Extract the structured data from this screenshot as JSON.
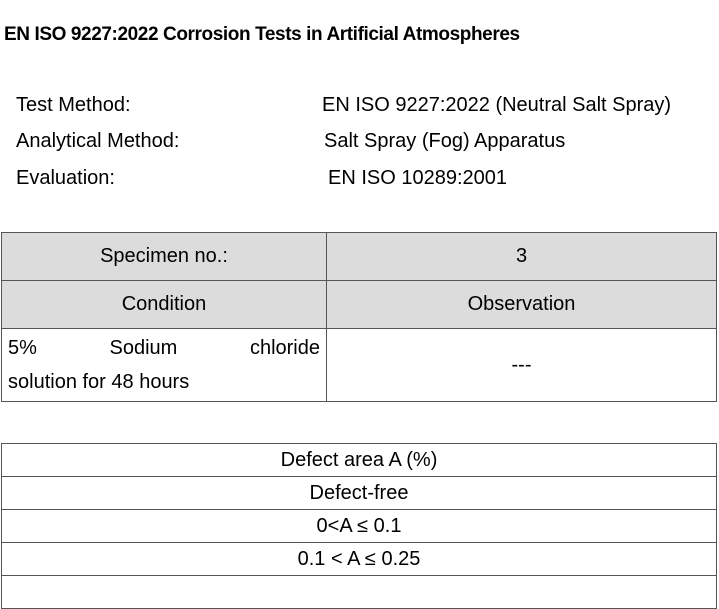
{
  "title": "EN ISO 9227:2022 Corrosion Tests in Artificial Atmospheres",
  "info": [
    {
      "label": "Test Method:",
      "value": "EN ISO 9227:2022 (Neutral Salt Spray)"
    },
    {
      "label": "Analytical Method:",
      "value": "Salt Spray (Fog) Apparatus"
    },
    {
      "label": "Evaluation:",
      "value": "EN ISO 10289:2001"
    }
  ],
  "specimen_table": {
    "specimen_label": "Specimen no.:",
    "specimen_value": "3",
    "condition_header": "Condition",
    "observation_header": "Observation",
    "condition_line1": "5% Sodium chloride",
    "condition_line2": "solution for 48 hours",
    "observation_value": "---"
  },
  "defect_table": {
    "header": "Defect area A (%)",
    "rows": [
      "Defect-free",
      "0<A ≤ 0.1",
      "0.1 < A ≤ 0.25",
      ""
    ]
  }
}
